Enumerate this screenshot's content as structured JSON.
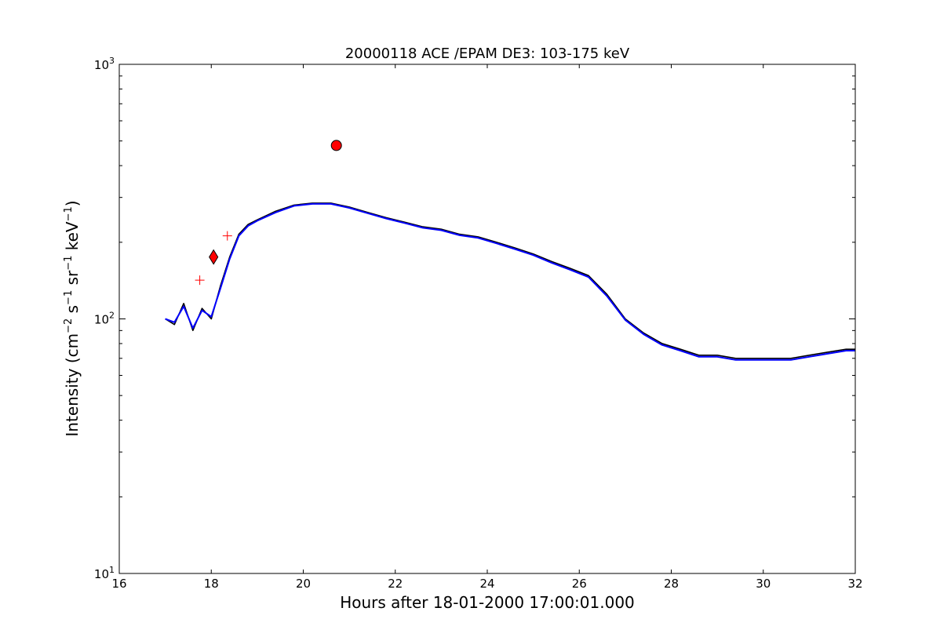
{
  "chart_data": {
    "type": "line",
    "title": "20000118 ACE /EPAM DE3: 103-175 keV",
    "xlabel": "Hours after 18-01-2000 17:00:01.000",
    "ylabel": {
      "prefix": "Intensity (cm",
      "sup1": "−2",
      "mid1": " s",
      "sup2": "−1",
      "mid2": " sr",
      "sup3": "−1",
      "mid3": " keV",
      "sup4": "−1",
      "suffix": ")"
    },
    "xlim": [
      16,
      32
    ],
    "ylim": [
      10,
      1000
    ],
    "yscale": "log",
    "grid": false,
    "xticks": [
      16,
      18,
      20,
      22,
      24,
      26,
      28,
      30,
      32
    ],
    "yticks": [
      {
        "value": 10,
        "base": "10",
        "exp": "1"
      },
      {
        "value": 100,
        "base": "10",
        "exp": "2"
      },
      {
        "value": 1000,
        "base": "10",
        "exp": "3"
      }
    ],
    "series": [
      {
        "color": "#000000",
        "points": [
          [
            17.0,
            100
          ],
          [
            17.2,
            95
          ],
          [
            17.4,
            115
          ],
          [
            17.6,
            90
          ],
          [
            17.8,
            110
          ],
          [
            18.0,
            100
          ],
          [
            18.2,
            135
          ],
          [
            18.4,
            175
          ],
          [
            18.6,
            215
          ],
          [
            18.8,
            235
          ],
          [
            19.0,
            245
          ],
          [
            19.4,
            265
          ],
          [
            19.8,
            280
          ],
          [
            20.2,
            285
          ],
          [
            20.6,
            285
          ],
          [
            21.0,
            275
          ],
          [
            21.4,
            262
          ],
          [
            21.8,
            250
          ],
          [
            22.2,
            240
          ],
          [
            22.6,
            230
          ],
          [
            23.0,
            225
          ],
          [
            23.4,
            215
          ],
          [
            23.8,
            210
          ],
          [
            24.2,
            200
          ],
          [
            24.6,
            190
          ],
          [
            25.0,
            180
          ],
          [
            25.4,
            168
          ],
          [
            25.8,
            158
          ],
          [
            26.2,
            148
          ],
          [
            26.6,
            125
          ],
          [
            27.0,
            100
          ],
          [
            27.4,
            88
          ],
          [
            27.8,
            80
          ],
          [
            28.2,
            76
          ],
          [
            28.6,
            72
          ],
          [
            29.0,
            72
          ],
          [
            29.4,
            70
          ],
          [
            29.8,
            70
          ],
          [
            30.2,
            70
          ],
          [
            30.6,
            70
          ],
          [
            31.0,
            72
          ],
          [
            31.4,
            74
          ],
          [
            31.8,
            76
          ],
          [
            32.0,
            76
          ]
        ]
      },
      {
        "color": "#0000ff",
        "points": [
          [
            17.0,
            100
          ],
          [
            17.2,
            97
          ],
          [
            17.4,
            112
          ],
          [
            17.6,
            92
          ],
          [
            17.8,
            108
          ],
          [
            18.0,
            102
          ],
          [
            18.2,
            132
          ],
          [
            18.4,
            172
          ],
          [
            18.6,
            212
          ],
          [
            18.8,
            232
          ],
          [
            19.0,
            243
          ],
          [
            19.4,
            262
          ],
          [
            19.8,
            278
          ],
          [
            20.2,
            283
          ],
          [
            20.6,
            283
          ],
          [
            21.0,
            273
          ],
          [
            21.4,
            260
          ],
          [
            21.8,
            248
          ],
          [
            22.2,
            238
          ],
          [
            22.6,
            228
          ],
          [
            23.0,
            223
          ],
          [
            23.4,
            213
          ],
          [
            23.8,
            208
          ],
          [
            24.2,
            198
          ],
          [
            24.6,
            188
          ],
          [
            25.0,
            178
          ],
          [
            25.4,
            166
          ],
          [
            25.8,
            156
          ],
          [
            26.2,
            146
          ],
          [
            26.6,
            123
          ],
          [
            27.0,
            99
          ],
          [
            27.4,
            87
          ],
          [
            27.8,
            79
          ],
          [
            28.2,
            75
          ],
          [
            28.6,
            71
          ],
          [
            29.0,
            71
          ],
          [
            29.4,
            69
          ],
          [
            29.8,
            69
          ],
          [
            30.2,
            69
          ],
          [
            30.6,
            69
          ],
          [
            31.0,
            71
          ],
          [
            31.4,
            73
          ],
          [
            31.8,
            75
          ],
          [
            32.0,
            75
          ]
        ]
      }
    ],
    "markers": [
      {
        "shape": "circle",
        "x": 20.72,
        "y": 480,
        "color": "#ff0000"
      },
      {
        "shape": "diamond",
        "x": 18.05,
        "y": 175,
        "color": "#ff0000"
      },
      {
        "shape": "plus",
        "x": 18.35,
        "y": 212,
        "color": "#ff0000"
      },
      {
        "shape": "plus",
        "x": 17.75,
        "y": 142,
        "color": "#ff0000"
      }
    ]
  }
}
